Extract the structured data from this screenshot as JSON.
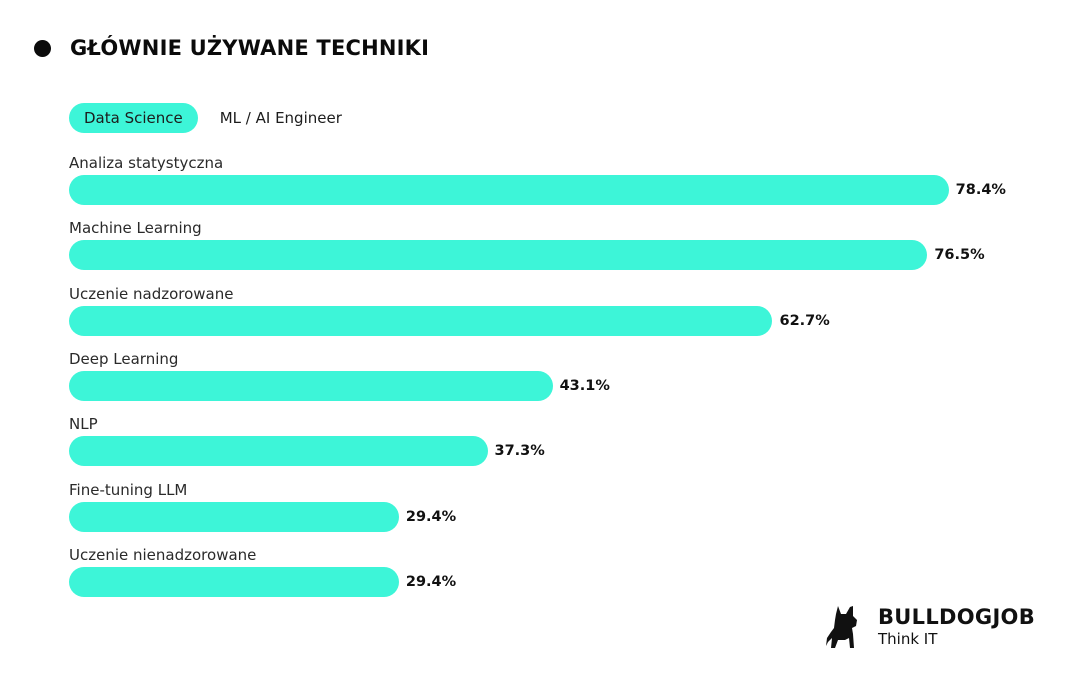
{
  "header": {
    "title": "GŁÓWNIE UŻYWANE TECHNIKI"
  },
  "tabs": [
    {
      "label": "Data Science",
      "active": true
    },
    {
      "label": "ML / AI Engineer",
      "active": false
    }
  ],
  "colors": {
    "bar": "#3df5d8",
    "text": "#1a1a1a",
    "background": "#ffffff"
  },
  "chart_data": {
    "type": "bar",
    "orientation": "horizontal",
    "title": "GŁÓWNIE UŻYWANE TECHNIKI",
    "active_series": "Data Science",
    "categories": [
      "Analiza statystyczna",
      "Machine Learning",
      "Uczenie nadzorowane",
      "Deep Learning",
      "NLP",
      "Fine-tuning LLM",
      "Uczenie nienadzorowane"
    ],
    "values": [
      78.4,
      76.5,
      62.7,
      43.1,
      37.3,
      29.4,
      29.4
    ],
    "value_labels": [
      "78.4%",
      "76.5%",
      "62.7%",
      "43.1%",
      "37.3%",
      "29.4%",
      "29.4%"
    ],
    "unit": "%",
    "xlabel": "",
    "ylabel": "",
    "xlim": [
      0,
      100
    ],
    "grid": false,
    "legend": "tabs-top"
  },
  "logo": {
    "brand": "BULLDOGJOB",
    "tagline": "Think IT",
    "icon": "bulldog-icon"
  }
}
